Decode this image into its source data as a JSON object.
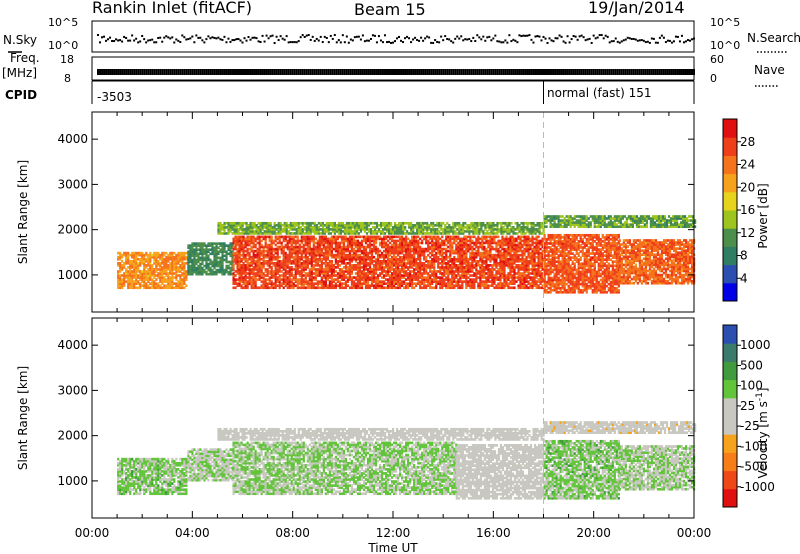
{
  "header": {
    "station": "Rankin Inlet (fitACF)",
    "beam": "Beam 15",
    "date": "19/Jan/2014"
  },
  "noise_panel": {
    "left_label": "N.Sky",
    "left_ticks": [
      "10^5",
      "10^0"
    ],
    "right_label": "N.Search",
    "right_ticks": [
      "10^5",
      "10^0"
    ]
  },
  "freq_panel": {
    "left_label_1": "Freq.",
    "left_label_2": "[MHz]",
    "left_ticks": [
      "18",
      "8"
    ],
    "right_label": "Nave",
    "right_ticks": [
      "60",
      "0"
    ]
  },
  "cpid_panel": {
    "label": "CPID",
    "first_id": "-3503",
    "second_id": "normal (fast) 151",
    "switch_hour": 18.0
  },
  "chart_data": [
    {
      "type": "heatmap",
      "title": "",
      "ylabel": "Slant Range [km]",
      "xlabel": "",
      "x_range_hours": [
        0,
        24
      ],
      "ylim": [
        180,
        4600
      ],
      "y_ticks": [
        "1000",
        "2000",
        "3000",
        "4000"
      ],
      "colorbar": {
        "label": "Power [dB]",
        "ticks": [
          "4",
          "8",
          "12",
          "16",
          "20",
          "24",
          "28"
        ],
        "range": [
          0,
          32
        ],
        "colors": [
          "#0000e6",
          "#2b4fb0",
          "#2f7e63",
          "#4c8f4a",
          "#9ec41e",
          "#e6d31c",
          "#f7a21d",
          "#f5731c",
          "#ee3e1a",
          "#e01010"
        ]
      },
      "bands": [
        {
          "start": 1.0,
          "end": 3.8,
          "r1": 700,
          "r2": 1500,
          "v": 22
        },
        {
          "start": 3.8,
          "end": 5.6,
          "r1": 1000,
          "r2": 1700,
          "v": 10
        },
        {
          "start": 5.6,
          "end": 18.0,
          "r1": 700,
          "r2": 1850,
          "v": 27
        },
        {
          "start": 5.0,
          "end": 18.0,
          "r1": 1900,
          "r2": 2150,
          "v": 13
        },
        {
          "start": 18.0,
          "end": 21.0,
          "r1": 600,
          "r2": 1900,
          "v": 26
        },
        {
          "start": 21.0,
          "end": 24.0,
          "r1": 800,
          "r2": 1750,
          "v": 25
        },
        {
          "start": 18.0,
          "end": 24.0,
          "r1": 2050,
          "r2": 2300,
          "v": 12
        }
      ]
    },
    {
      "type": "heatmap",
      "title": "",
      "ylabel": "Slant Range [km]",
      "xlabel": "Time UT",
      "x_range_hours": [
        0,
        24
      ],
      "x_ticks": [
        "00:00",
        "04:00",
        "08:00",
        "12:00",
        "16:00",
        "20:00",
        "00:00"
      ],
      "ylim": [
        180,
        4600
      ],
      "y_ticks": [
        "1000",
        "2000",
        "3000",
        "4000"
      ],
      "colorbar": {
        "label": "Velocity [m s^-1]",
        "ticks": [
          "1000",
          "500",
          "100",
          "25",
          "-25",
          "-100",
          "-500",
          "-1000"
        ],
        "range": [
          -1200,
          1200
        ],
        "colors": [
          "#e01010",
          "#ef4818",
          "#f67d18",
          "#f7a21d",
          "#c8c8c0",
          "#c8c8c0",
          "#62c43a",
          "#3f9b3d",
          "#3a7b6b",
          "#2b4fb0"
        ]
      },
      "bands": [
        {
          "start": 1.0,
          "end": 3.8,
          "r1": 700,
          "r2": 1500,
          "v": 300
        },
        {
          "start": 3.8,
          "end": 5.6,
          "r1": 1000,
          "r2": 1700,
          "v": 200
        },
        {
          "start": 5.6,
          "end": 14.5,
          "r1": 700,
          "r2": 1850,
          "v": 250
        },
        {
          "start": 14.5,
          "end": 18.0,
          "r1": 600,
          "r2": 1800,
          "v": 0
        },
        {
          "start": 5.0,
          "end": 18.0,
          "r1": 1900,
          "r2": 2150,
          "v": 10
        },
        {
          "start": 18.0,
          "end": 21.0,
          "r1": 600,
          "r2": 1900,
          "v": 300
        },
        {
          "start": 21.0,
          "end": 24.0,
          "r1": 800,
          "r2": 1750,
          "v": 200
        },
        {
          "start": 18.0,
          "end": 24.0,
          "r1": 2050,
          "r2": 2300,
          "v": -60
        }
      ]
    }
  ]
}
